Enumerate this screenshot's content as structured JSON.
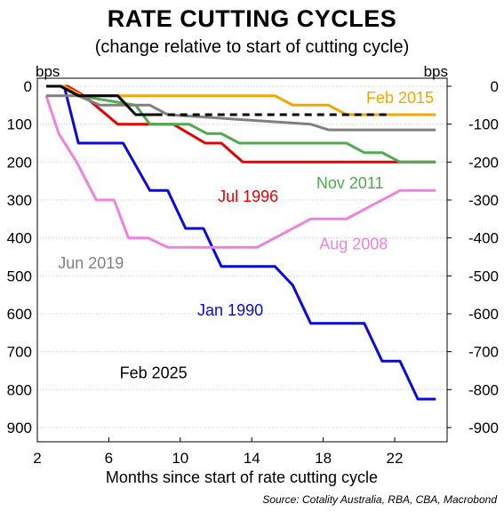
{
  "title": "RATE CUTTING CYCLES",
  "subtitle": "(change relative to start of cutting cycle)",
  "source": "Source: Cotality Australia, RBA, CBA, Macrobond",
  "chart_data": {
    "type": "line",
    "xlabel": "Months since start of rate cutting cycle",
    "y_unit_left": "bps",
    "y_unit_right": "bps",
    "xlim": [
      2,
      25
    ],
    "ylim": [
      0,
      930
    ],
    "x_ticks": [
      2,
      6,
      10,
      14,
      18,
      22
    ],
    "y_ticks_left": [
      0,
      100,
      200,
      300,
      400,
      500,
      600,
      700,
      800,
      900
    ],
    "y_ticks_right": [
      "0",
      "-100",
      "-200",
      "-300",
      "-400",
      "-500",
      "-600",
      "-700",
      "-800",
      "-900"
    ],
    "grid": "horizontal",
    "series": [
      {
        "name": "Jan 1990",
        "color": "#0a0adc",
        "dash": false,
        "points": [
          [
            2.5,
            0
          ],
          [
            3.5,
            0
          ],
          [
            4.3,
            150
          ],
          [
            6.8,
            150
          ],
          [
            8.3,
            275
          ],
          [
            9.3,
            275
          ],
          [
            10.3,
            375
          ],
          [
            11.3,
            375
          ],
          [
            12.3,
            475
          ],
          [
            15.3,
            475
          ],
          [
            16.3,
            525
          ],
          [
            17.3,
            625
          ],
          [
            20.3,
            625
          ],
          [
            21.3,
            725
          ],
          [
            22.3,
            725
          ],
          [
            23.3,
            825
          ],
          [
            24.3,
            825
          ]
        ]
      },
      {
        "name": "Jul 1996",
        "color": "#e60000",
        "dash": false,
        "points": [
          [
            2.5,
            0
          ],
          [
            3.7,
            0
          ],
          [
            4.6,
            25
          ],
          [
            6.5,
            100
          ],
          [
            9.6,
            100
          ],
          [
            11.4,
            150
          ],
          [
            12.3,
            150
          ],
          [
            13.5,
            200
          ],
          [
            24.3,
            200
          ]
        ]
      },
      {
        "name": "Aug 2008",
        "color": "#ee82dc",
        "dash": false,
        "points": [
          [
            2.5,
            25
          ],
          [
            3.2,
            125
          ],
          [
            4.2,
            200
          ],
          [
            5.3,
            300
          ],
          [
            6.3,
            300
          ],
          [
            7.1,
            400
          ],
          [
            8.2,
            400
          ],
          [
            9.3,
            425
          ],
          [
            14.3,
            425
          ],
          [
            17.3,
            350
          ],
          [
            19.3,
            350
          ],
          [
            22.3,
            275
          ],
          [
            24.3,
            275
          ]
        ]
      },
      {
        "name": "Nov 2011",
        "color": "#50aa50",
        "dash": false,
        "points": [
          [
            2.5,
            0
          ],
          [
            3.3,
            0
          ],
          [
            4.3,
            25
          ],
          [
            7.5,
            50
          ],
          [
            8.3,
            100
          ],
          [
            10.5,
            100
          ],
          [
            11.5,
            125
          ],
          [
            12.3,
            125
          ],
          [
            13.3,
            150
          ],
          [
            19.3,
            150
          ],
          [
            20.3,
            175
          ],
          [
            21.3,
            175
          ],
          [
            22.3,
            200
          ],
          [
            24.3,
            200
          ]
        ]
      },
      {
        "name": "Feb 2015",
        "color": "#f5a500",
        "dash": false,
        "points": [
          [
            2.5,
            0
          ],
          [
            3.5,
            0
          ],
          [
            4.5,
            25
          ],
          [
            15.3,
            25
          ],
          [
            16.3,
            50
          ],
          [
            18.3,
            50
          ],
          [
            19.3,
            75
          ],
          [
            24.3,
            75
          ]
        ]
      },
      {
        "name": "Jun 2019",
        "color": "#808080",
        "dash": false,
        "points": [
          [
            2.5,
            25
          ],
          [
            4.3,
            25
          ],
          [
            5.5,
            50
          ],
          [
            8.3,
            50
          ],
          [
            9.3,
            75
          ],
          [
            17.3,
            100
          ],
          [
            18.3,
            115
          ],
          [
            24.3,
            115
          ]
        ]
      },
      {
        "name": "Feb 2025",
        "color": "#000000",
        "dash": false,
        "points": [
          [
            2.5,
            0
          ],
          [
            3.3,
            0
          ],
          [
            4.3,
            25
          ],
          [
            6.5,
            25
          ],
          [
            7.5,
            75
          ],
          [
            8.6,
            75
          ]
        ]
      },
      {
        "name": "",
        "color": "#000000",
        "dash": true,
        "points": [
          [
            8.6,
            75
          ],
          [
            21.8,
            75
          ]
        ]
      }
    ],
    "labels": [
      {
        "text": "Feb 2015",
        "color": "#f5a500",
        "x": 22.3,
        "y": 45
      },
      {
        "text": "Nov 2011",
        "color": "#50aa50",
        "x": 19.5,
        "y": 270
      },
      {
        "text": "Jul 1996",
        "color": "#e60000",
        "x": 13.8,
        "y": 305
      },
      {
        "text": "Aug 2008",
        "color": "#ee82dc",
        "x": 19.7,
        "y": 430
      },
      {
        "text": "Jun 2019",
        "color": "#808080",
        "x": 5.0,
        "y": 480
      },
      {
        "text": "Jan 1990",
        "color": "#0a0adc",
        "x": 12.8,
        "y": 605
      },
      {
        "text": "Feb 2025",
        "color": "#000000",
        "x": 8.5,
        "y": 770
      }
    ]
  }
}
